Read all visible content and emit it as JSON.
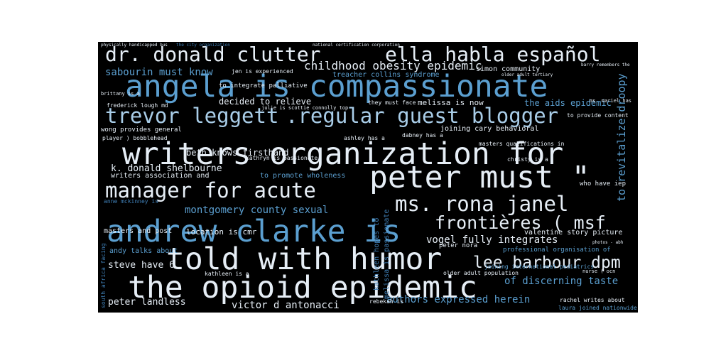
{
  "words": [
    {
      "text": "angela is compassionate",
      "tone": "c2"
    },
    {
      "text": "writers organization for",
      "tone": "c1"
    },
    {
      "text": "peter must \"",
      "tone": "c1"
    },
    {
      "text": "andrew clarke is",
      "tone": "c2"
    },
    {
      "text": "told with humor",
      "tone": "c1"
    },
    {
      "text": "the opioid epidemic",
      "tone": "c1"
    },
    {
      "text": "dr. donald clutter",
      "tone": "c1"
    },
    {
      "text": "ella habla español",
      "tone": "c1"
    },
    {
      "text": "trevor leggett",
      "tone": "c3"
    },
    {
      "text": ".regular guest blogger",
      "tone": "c3"
    },
    {
      "text": "manager for acute",
      "tone": "c1"
    },
    {
      "text": "ms. rona janel",
      "tone": "c1"
    },
    {
      "text": "frontières ( msf",
      "tone": "c1"
    },
    {
      "text": "lee barbour dpm",
      "tone": "c1"
    },
    {
      "text": "childhood obesity epidemic",
      "tone": "c1"
    },
    {
      "text": "sabourin must know",
      "tone": "c2"
    },
    {
      "text": "k. donald shelbourne",
      "tone": "c1"
    },
    {
      "text": "montgomery county sexual",
      "tone": "c2"
    },
    {
      "text": "vogel fully integrates",
      "tone": "c1"
    },
    {
      "text": "of discerning taste",
      "tone": "c2"
    },
    {
      "text": "authors expressed herein",
      "tone": "c2"
    },
    {
      "text": "victor d antonacci",
      "tone": "c1"
    },
    {
      "text": "peter landless",
      "tone": "c1"
    },
    {
      "text": "steve have 6",
      "tone": "c1"
    },
    {
      "text": "to revitalize droopy",
      "tone": "c2"
    },
    {
      "text": "beth knows firsthand",
      "tone": "c1"
    },
    {
      "text": "decided to relieve",
      "tone": "c1"
    },
    {
      "text": "melissa is now",
      "tone": "c1"
    },
    {
      "text": "the aids epidemic",
      "tone": "c2"
    },
    {
      "text": "joining cary behavioral",
      "tone": "c1"
    },
    {
      "text": "to integrate palliative",
      "tone": "c1"
    },
    {
      "text": "treacher collins syndrome",
      "tone": "c2"
    },
    {
      "text": "simon community",
      "tone": "c1"
    },
    {
      "text": "writers association and",
      "tone": "c1"
    },
    {
      "text": "to promote wholeness",
      "tone": "c2"
    },
    {
      "text": "location is cmr",
      "tone": "c1"
    },
    {
      "text": "andy talks about",
      "tone": "c2"
    },
    {
      "text": "masters and post",
      "tone": "c1"
    },
    {
      "text": "wong provides general",
      "tone": "c1"
    },
    {
      "text": "valentine story picture",
      "tone": "c1"
    },
    {
      "text": "professional organisation of",
      "tone": "c2"
    },
    {
      "text": "who have iep",
      "tone": "c1"
    },
    {
      "text": "kathleen hopes to",
      "tone": "c4"
    },
    {
      "text": "melissa is passionate",
      "tone": "c4"
    },
    {
      "text": "peter nora",
      "tone": "c1"
    },
    {
      "text": "frederick lough md",
      "tone": "c1"
    },
    {
      "text": "jen is experienced",
      "tone": "c1"
    },
    {
      "text": "kathleen is a",
      "tone": "c1"
    },
    {
      "text": "laura joined nationwide",
      "tone": "c2"
    },
    {
      "text": "rachel writes about",
      "tone": "c1"
    },
    {
      "text": "older adult population",
      "tone": "c1"
    },
    {
      "text": "joining international pediatrics",
      "tone": "c2"
    },
    {
      "text": "to provide content",
      "tone": "c1"
    },
    {
      "text": "masters qualifications in",
      "tone": "c1"
    },
    {
      "text": "they must face",
      "tone": "c1"
    },
    {
      "text": "ashley has a",
      "tone": "c1"
    },
    {
      "text": "dabney has a",
      "tone": "c1"
    },
    {
      "text": "christy is a",
      "tone": "c1"
    },
    {
      "text": "player ) bobblehead",
      "tone": "c1"
    },
    {
      "text": "anne mckinney is",
      "tone": "c4"
    },
    {
      "text": "south africa facing",
      "tone": "c4"
    },
    {
      "text": "julie is scottie connolly top",
      "tone": "c1"
    },
    {
      "text": "kathryn is passionate",
      "tone": "c1"
    },
    {
      "text": "rebekah is",
      "tone": "c1"
    },
    {
      "text": "ms. mariel has",
      "tone": "c1"
    },
    {
      "text": "national certification corporation",
      "tone": "c1"
    },
    {
      "text": "physically handicapped bus",
      "tone": "c1"
    },
    {
      "text": "the city organization",
      "tone": "c4"
    },
    {
      "text": "barry remembers the",
      "tone": "c1"
    },
    {
      "text": "older adult tertiary",
      "tone": "c1"
    },
    {
      "text": "brittany is a",
      "tone": "c1"
    },
    {
      "text": "nurse ( ocn",
      "tone": "c1"
    },
    {
      "text": "photos - abh",
      "tone": "c1"
    }
  ]
}
